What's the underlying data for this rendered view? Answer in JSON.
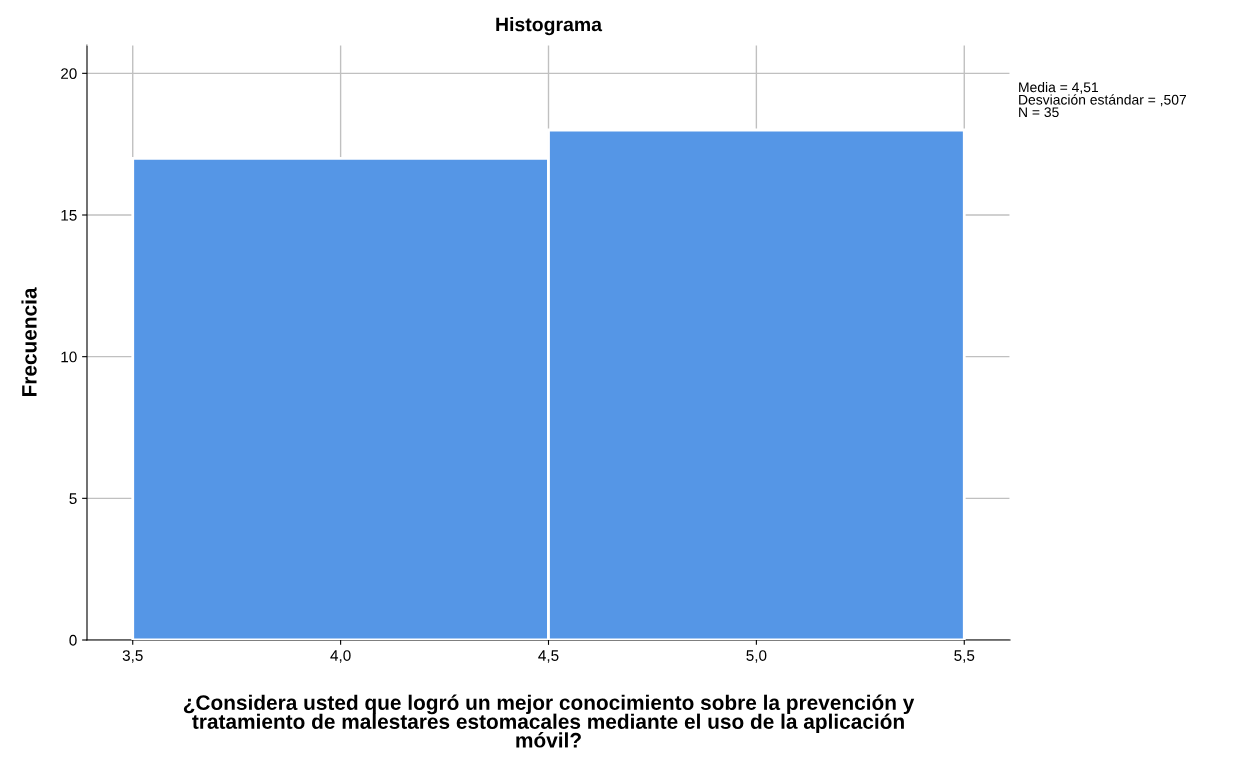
{
  "chart_data": {
    "type": "histogram",
    "title": "Histograma",
    "xlabel": "¿Considera usted que logró un mejor conocimiento sobre la prevención y\ntratamiento de malestares estomacales mediante el uso de la aplicación\nmóvil?",
    "ylabel": "Frecuencia",
    "bins": [
      3.5,
      4.5,
      5.5
    ],
    "values": [
      17,
      18
    ],
    "color": "#5596e6",
    "xlim": [
      3.39,
      5.61
    ],
    "ylim": [
      0,
      21
    ],
    "xticks": [
      {
        "value": 3.5,
        "label": "3,5"
      },
      {
        "value": 4.0,
        "label": "4,0"
      },
      {
        "value": 4.5,
        "label": "4,5"
      },
      {
        "value": 5.0,
        "label": "5,0"
      },
      {
        "value": 5.5,
        "label": "5,5"
      }
    ],
    "yticks": [
      0,
      5,
      10,
      15,
      20
    ],
    "grid": true,
    "annotations": [
      "Media = 4,51",
      "Desviación estándar = ,507",
      "N = 35"
    ]
  }
}
